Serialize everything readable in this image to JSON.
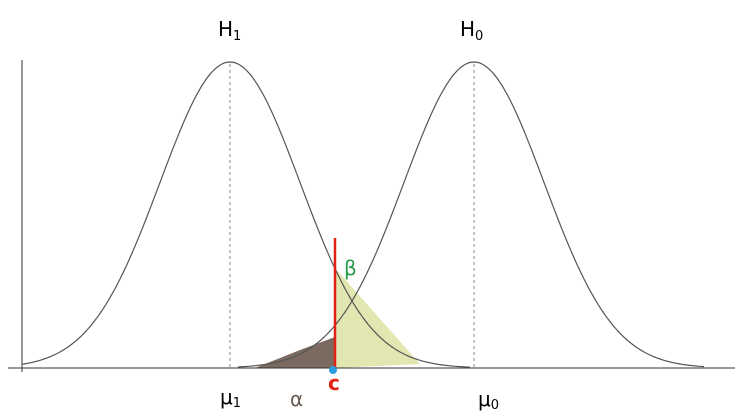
{
  "labels": {
    "h1": {
      "text": "H",
      "sub": "1"
    },
    "h0": {
      "text": "H",
      "sub": "0"
    },
    "mu1": {
      "text": "μ",
      "sub": "1"
    },
    "mu0": {
      "text": "μ",
      "sub": "0"
    },
    "alpha": "α",
    "beta": "β",
    "c": "c"
  }
}
